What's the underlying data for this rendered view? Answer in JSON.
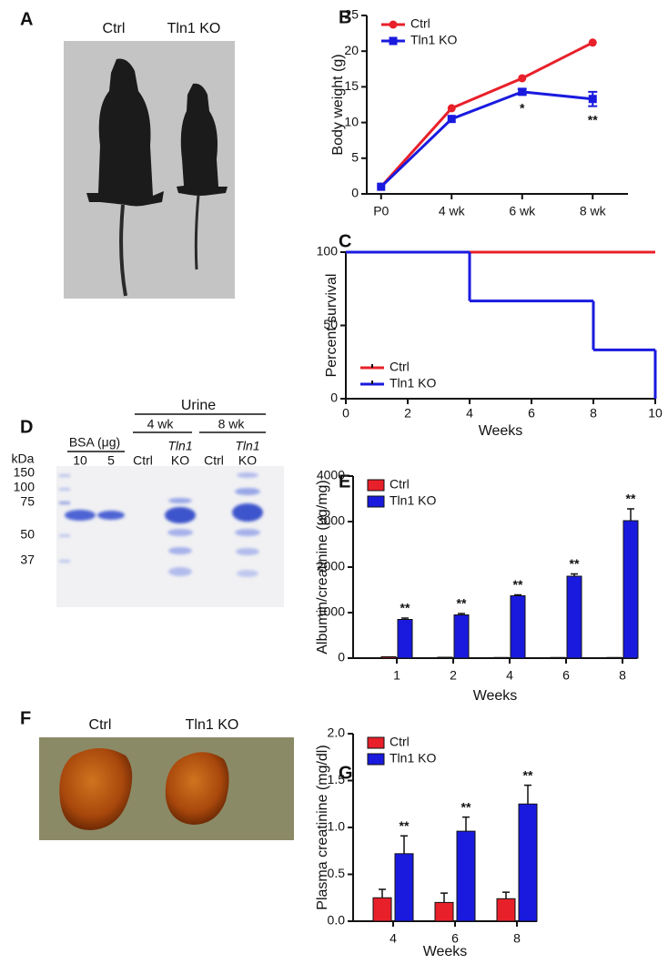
{
  "panels": {
    "labels": [
      "A",
      "B",
      "C",
      "D",
      "E",
      "F",
      "G"
    ]
  },
  "photo_a": {
    "labels": [
      "Ctrl",
      "Tln1 KO"
    ]
  },
  "gel_d": {
    "group_label": "Urine",
    "timepoints": [
      "4 wk",
      "8 wk"
    ],
    "standard_label": "BSA (μg)",
    "lanes": [
      [
        "10"
      ],
      [
        "5"
      ],
      [
        "Ctrl"
      ],
      [
        "Tln1",
        "KO"
      ],
      [
        "Ctrl"
      ],
      [
        "Tln1",
        "KO"
      ]
    ],
    "marker_unit": "kDa",
    "marker_sizes": [
      "150",
      "100",
      "75",
      "50",
      "37"
    ]
  },
  "photo_f": {
    "labels": [
      "Ctrl",
      "Tln1 KO"
    ]
  },
  "chart_data": [
    {
      "type": "line",
      "ylabel": "Body weight (g)",
      "categories": [
        "P0",
        "4 wk",
        "6 wk",
        "8 wk"
      ],
      "ylim": [
        0,
        25
      ],
      "yticks": [
        0,
        5,
        10,
        15,
        20,
        25
      ],
      "legend": "upper left",
      "series": [
        {
          "name": "Ctrl",
          "color": "#e8202a",
          "marker": "circle",
          "values": [
            1,
            12,
            16.2,
            21.2
          ]
        },
        {
          "name": "Tln1 KO",
          "color": "#1a1adf",
          "marker": "square",
          "values": [
            1,
            10.5,
            14.3,
            13.3
          ],
          "errors": [
            null,
            null,
            0.4,
            1.0
          ],
          "significance": [
            null,
            null,
            "*",
            "**"
          ]
        }
      ]
    },
    {
      "type": "step",
      "xlabel": "Weeks",
      "ylabel": "Percent survival",
      "xlim": [
        0,
        10
      ],
      "xticks": [
        0,
        2,
        4,
        6,
        8,
        10
      ],
      "ylim": [
        0,
        100
      ],
      "yticks": [
        0,
        50,
        100
      ],
      "legend": "lower left",
      "series": [
        {
          "name": "Ctrl",
          "color": "#e8202a",
          "x": [
            0,
            10
          ],
          "values": [
            100,
            100
          ]
        },
        {
          "name": "Tln1 KO",
          "color": "#1a1adf",
          "x": [
            0,
            4,
            8,
            10
          ],
          "values": [
            100,
            66.7,
            33.3,
            0
          ]
        }
      ]
    },
    {
      "type": "bar",
      "xlabel": "Weeks",
      "ylabel": "Albumin/creatinine (μg/mg)",
      "categories": [
        "1",
        "2",
        "4",
        "6",
        "8"
      ],
      "ylim": [
        0,
        4000
      ],
      "yticks": [
        0,
        1000,
        2000,
        3000,
        4000
      ],
      "legend": "upper left",
      "series": [
        {
          "name": "Ctrl",
          "color": "#e8202a",
          "values": [
            30,
            20,
            15,
            15,
            15
          ]
        },
        {
          "name": "Tln1 KO",
          "color": "#1a1adf",
          "values": [
            850,
            950,
            1370,
            1800,
            3020
          ],
          "errors": [
            30,
            30,
            20,
            50,
            260
          ],
          "significance": [
            "**",
            "**",
            "**",
            "**",
            "**"
          ]
        }
      ]
    },
    {
      "type": "bar",
      "xlabel": "Weeks",
      "ylabel": "Plasma creatinine (mg/dl)",
      "categories": [
        "4",
        "6",
        "8"
      ],
      "ylim": [
        0,
        2
      ],
      "yticks": [
        {
          "value": 0,
          "label": "0.0"
        },
        {
          "value": 0.5,
          "label": "0.5"
        },
        {
          "value": 1,
          "label": "1.0"
        },
        {
          "value": 1.5,
          "label": "1.5"
        },
        {
          "value": 2,
          "label": "2.0"
        }
      ],
      "legend": "upper left",
      "series": [
        {
          "name": "Ctrl",
          "color": "#e8202a",
          "values": [
            0.25,
            0.2,
            0.24
          ],
          "errors": [
            0.09,
            0.1,
            0.07
          ]
        },
        {
          "name": "Tln1 KO",
          "color": "#1a1adf",
          "values": [
            0.72,
            0.96,
            1.25
          ],
          "errors": [
            0.19,
            0.15,
            0.2
          ],
          "significance": [
            "**",
            "**",
            "**"
          ]
        }
      ]
    }
  ]
}
